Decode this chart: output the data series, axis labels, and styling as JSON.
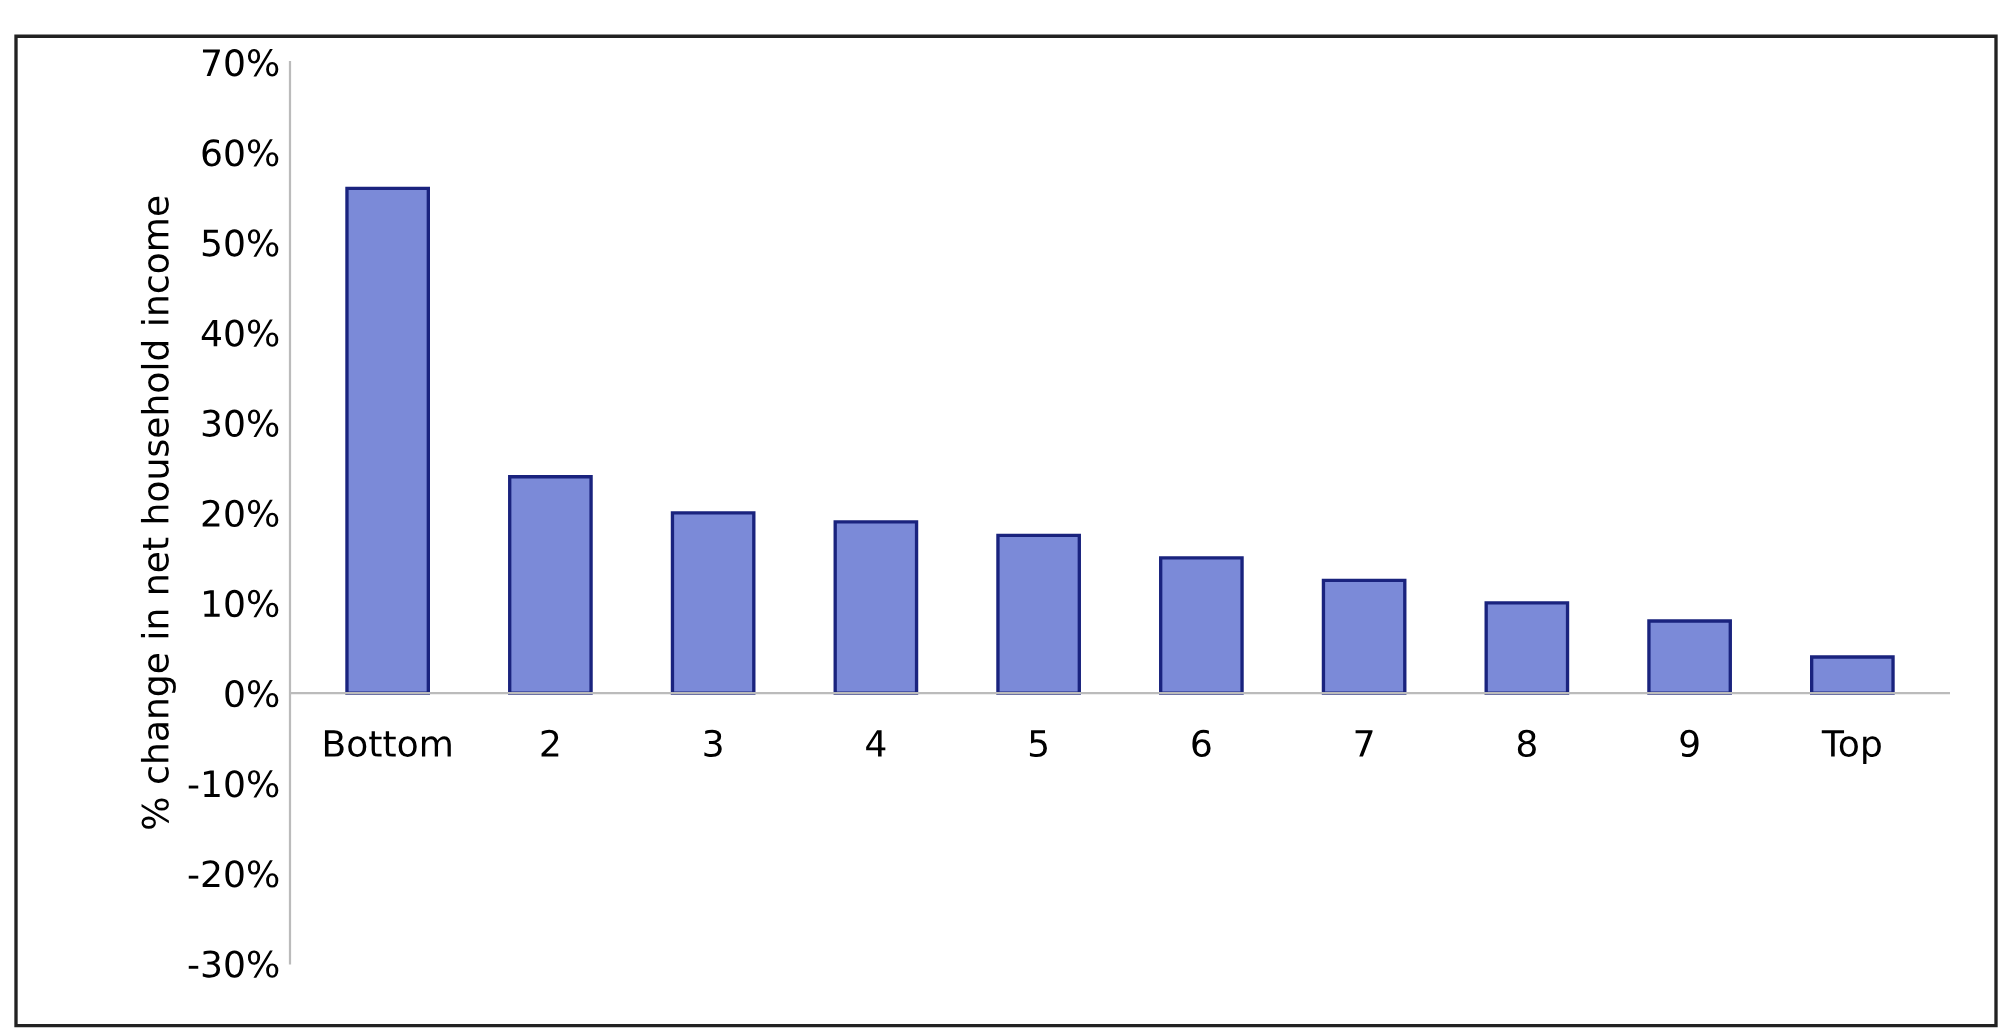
{
  "chart_data": {
    "type": "bar",
    "ylabel": "% change in net household income",
    "categories": [
      "Bottom",
      "2",
      "3",
      "4",
      "5",
      "6",
      "7",
      "8",
      "9",
      "Top"
    ],
    "values": [
      56,
      24,
      20,
      19,
      17.5,
      15,
      12.5,
      10,
      8,
      4
    ],
    "color": "#7b8ad8",
    "ylim": [
      -30,
      70
    ],
    "yticks": [
      {
        "value": -30,
        "label": "-30%"
      },
      {
        "value": -20,
        "label": "-20%"
      },
      {
        "value": -10,
        "label": "-10%"
      },
      {
        "value": 0,
        "label": "0%"
      },
      {
        "value": 10,
        "label": "10%"
      },
      {
        "value": 20,
        "label": "20%"
      },
      {
        "value": 30,
        "label": "30%"
      },
      {
        "value": 40,
        "label": "40%"
      },
      {
        "value": 50,
        "label": "50%"
      },
      {
        "value": 60,
        "label": "60%"
      },
      {
        "value": 70,
        "label": "70%"
      }
    ],
    "grid": false
  }
}
